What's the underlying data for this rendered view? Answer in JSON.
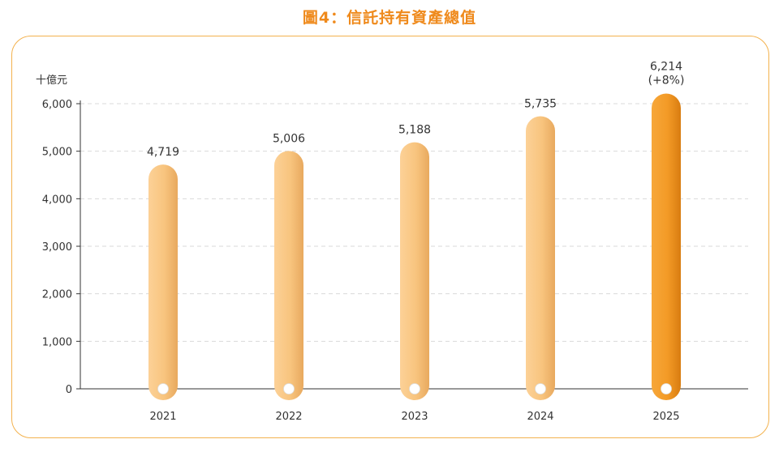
{
  "title": "圖4：信託持有資產總值",
  "chart_data": {
    "type": "bar",
    "title": "圖4：信託持有資產總值",
    "unit_label": "十億元",
    "categories": [
      "2021",
      "2022",
      "2023",
      "2024",
      "2025"
    ],
    "values": [
      4719,
      5006,
      5188,
      5735,
      6214
    ],
    "value_labels": [
      "4,719",
      "5,006",
      "5,188",
      "5,735",
      "6,214"
    ],
    "annotations": [
      {
        "category": "2025",
        "text": "(+8%)"
      }
    ],
    "yticks": [
      0,
      1000,
      2000,
      3000,
      4000,
      5000,
      6000
    ],
    "ytick_labels": [
      "0",
      "1,000",
      "2,000",
      "3,000",
      "4,000",
      "5,000",
      "6,000"
    ],
    "ylim": [
      0,
      6000
    ],
    "grid": true,
    "highlight_category": "2025",
    "colors": {
      "bar_light": "#f8c47e",
      "bar_light_edge": "#e9ac60",
      "bar_highlight": "#f39a26",
      "bar_highlight_edge": "#dc7f12",
      "frame": "#f3b24e",
      "title": "#ef8a1c",
      "grid": "#d9d9d9"
    }
  }
}
